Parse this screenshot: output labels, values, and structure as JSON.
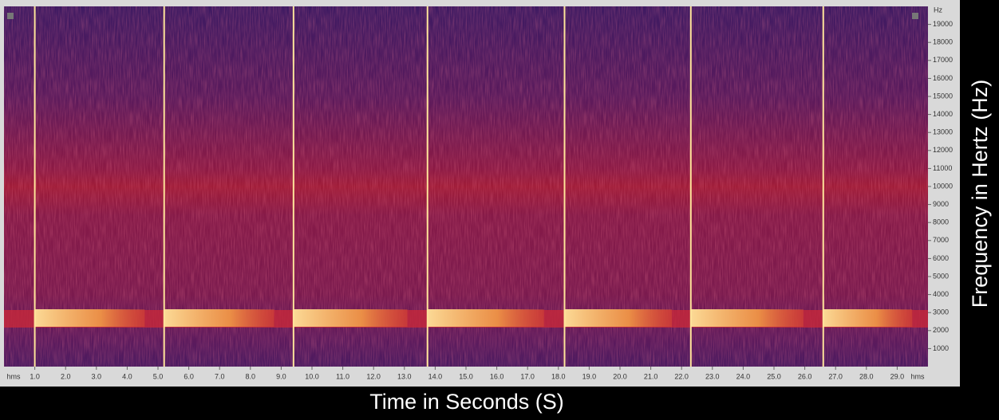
{
  "chart_data": {
    "type": "spectrogram",
    "x_label": "Time in Seconds (S)",
    "y_label": "Frequency in Hertz (Hz)",
    "x_unit": "hms",
    "y_unit": "Hz",
    "xlim": [
      0,
      30
    ],
    "ylim": [
      0,
      20000
    ],
    "xticks": [
      {
        "value": 1,
        "label": "1.0"
      },
      {
        "value": 2,
        "label": "2.0"
      },
      {
        "value": 3,
        "label": "3.0"
      },
      {
        "value": 4,
        "label": "4.0"
      },
      {
        "value": 5,
        "label": "5.0"
      },
      {
        "value": 6,
        "label": "6.0"
      },
      {
        "value": 7,
        "label": "7.0"
      },
      {
        "value": 8,
        "label": "8.0"
      },
      {
        "value": 9,
        "label": "9.0"
      },
      {
        "value": 10,
        "label": "10.0"
      },
      {
        "value": 11,
        "label": "11.0"
      },
      {
        "value": 12,
        "label": "12.0"
      },
      {
        "value": 13,
        "label": "13.0"
      },
      {
        "value": 14,
        "label": "14.0"
      },
      {
        "value": 15,
        "label": "15.0"
      },
      {
        "value": 16,
        "label": "16.0"
      },
      {
        "value": 17,
        "label": "17.0"
      },
      {
        "value": 18,
        "label": "18.0"
      },
      {
        "value": 19,
        "label": "19.0"
      },
      {
        "value": 20,
        "label": "20.0"
      },
      {
        "value": 21,
        "label": "21.0"
      },
      {
        "value": 22,
        "label": "22.0"
      },
      {
        "value": 23,
        "label": "23.0"
      },
      {
        "value": 24,
        "label": "24.0"
      },
      {
        "value": 25,
        "label": "25.0"
      },
      {
        "value": 26,
        "label": "26.0"
      },
      {
        "value": 27,
        "label": "27.0"
      },
      {
        "value": 28,
        "label": "28.0"
      },
      {
        "value": 29,
        "label": "29.0"
      }
    ],
    "yticks": [
      1000,
      2000,
      3000,
      4000,
      5000,
      6000,
      7000,
      8000,
      9000,
      10000,
      11000,
      12000,
      13000,
      14000,
      15000,
      16000,
      17000,
      18000,
      19000
    ],
    "x": [
      1.0,
      5.2,
      9.4,
      13.75,
      18.2,
      22.3,
      26.6
    ],
    "color": "#ffe49a"
  }
}
